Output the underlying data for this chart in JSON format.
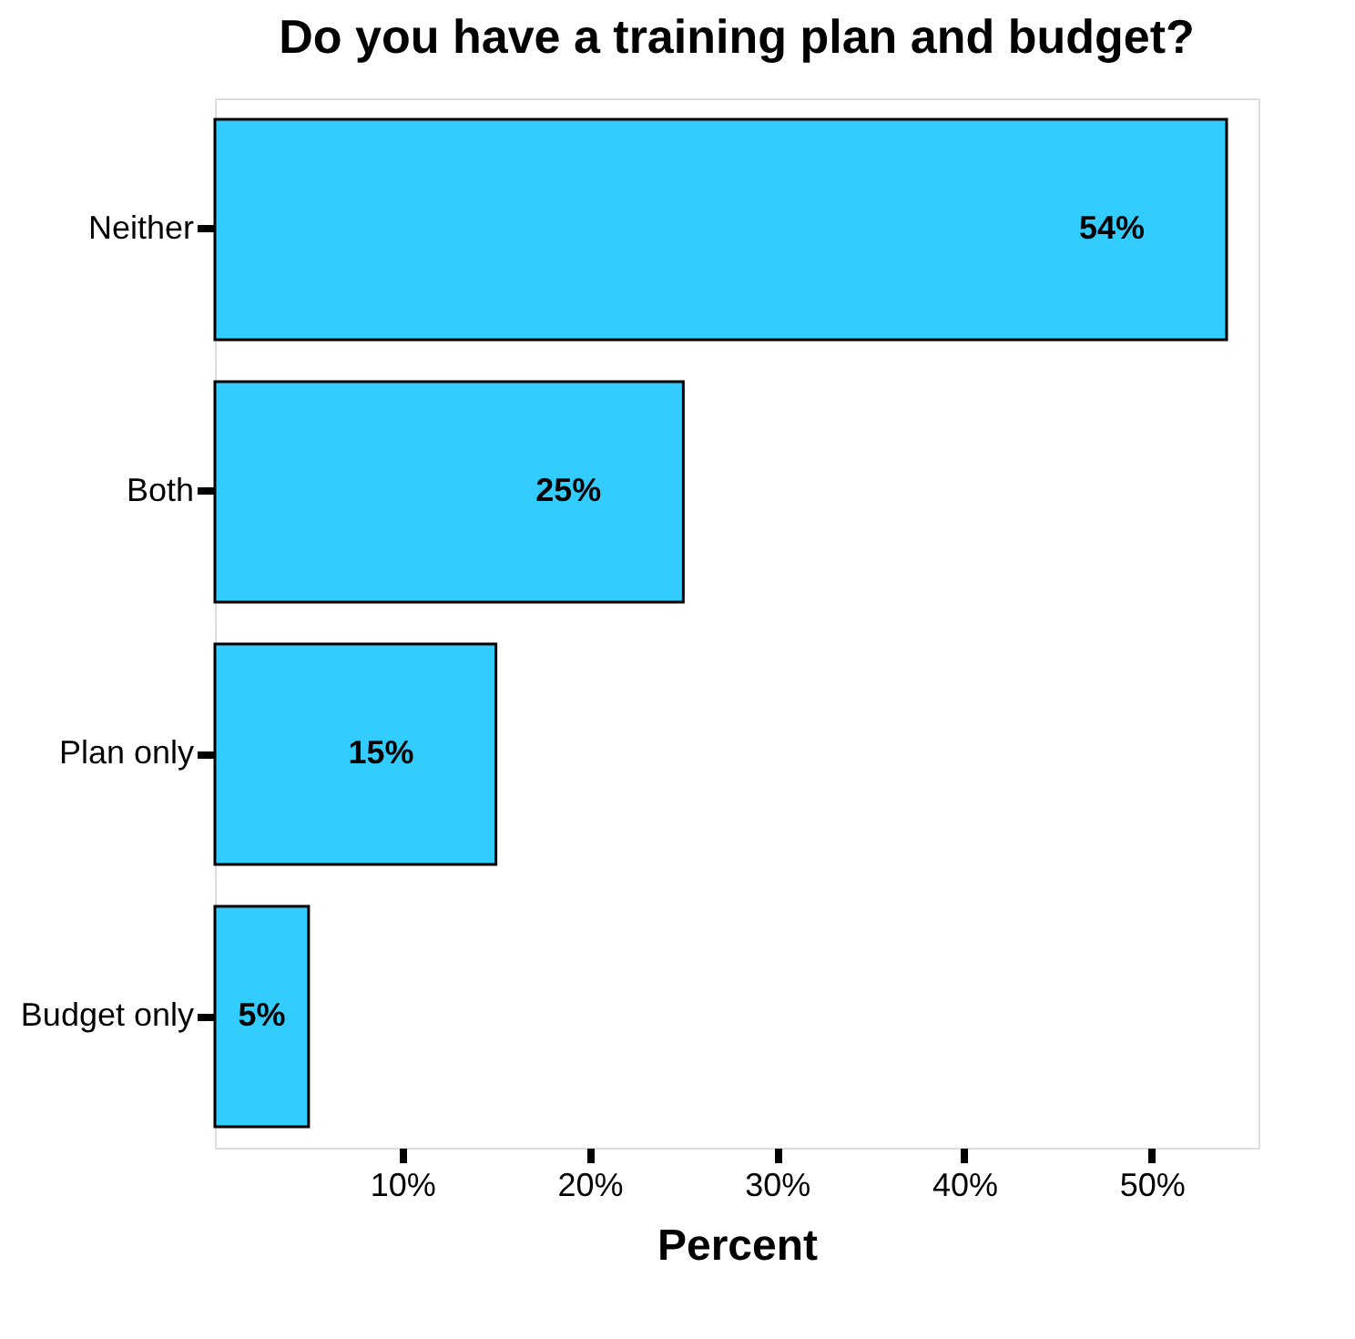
{
  "chart_data": {
    "type": "bar",
    "orientation": "horizontal",
    "title": "Do you have a training plan and budget?",
    "xlabel": "Percent",
    "categories": [
      "Neither",
      "Both",
      "Plan only",
      "Budget only"
    ],
    "values": [
      54,
      25,
      15,
      5
    ],
    "value_labels": [
      "54%",
      "25%",
      "15%",
      "5%"
    ],
    "color": "#33ccff",
    "xlim": [
      0,
      55.7
    ],
    "xticks": [
      {
        "value": 10,
        "label": "10%"
      },
      {
        "value": 20,
        "label": "20%"
      },
      {
        "value": 30,
        "label": "30%"
      },
      {
        "value": 40,
        "label": "40%"
      },
      {
        "value": 50,
        "label": "50%"
      }
    ],
    "grid": false
  }
}
